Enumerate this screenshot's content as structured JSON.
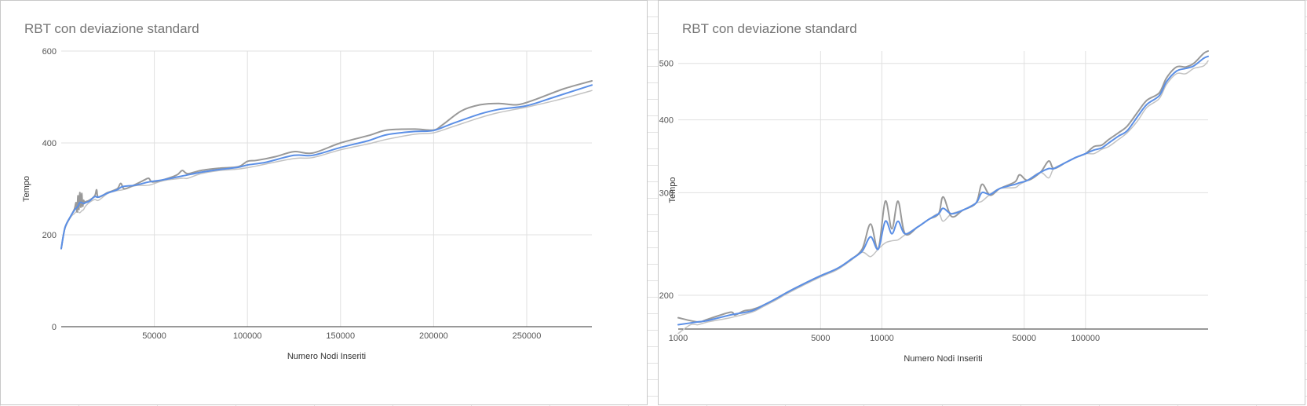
{
  "colors": {
    "mean": "#5b8fe6",
    "upper": "#999999",
    "lower": "#c2c2c2",
    "grid": "#e0e0e0",
    "axis": "#333333",
    "tick": "#555555",
    "title": "#757575"
  },
  "chart_data": [
    {
      "type": "line",
      "title": "RBT con deviazione standard",
      "xlabel": "Numero Nodi Inseriti",
      "ylabel": "Tempo",
      "xscale": "linear",
      "yscale": "linear",
      "xlim": [
        0,
        285000
      ],
      "ylim": [
        0,
        600
      ],
      "xticks": [
        50000,
        100000,
        150000,
        200000,
        250000
      ],
      "xtick_labels": [
        "50000",
        "100000",
        "150000",
        "200000",
        "250000"
      ],
      "yticks": [
        0,
        200,
        400,
        600
      ],
      "ytick_labels": [
        "0",
        "200",
        "400",
        "600"
      ],
      "grid": true,
      "legend": "none",
      "series": [
        {
          "role": "upper",
          "x": [
            0,
            2000,
            5000,
            7000,
            8000,
            8500,
            9000,
            9500,
            10000,
            10500,
            11000,
            11500,
            12000,
            12500,
            13000,
            15000,
            18000,
            19000,
            20000,
            25000,
            30000,
            32000,
            34000,
            40000,
            45000,
            47000,
            49000,
            55000,
            62000,
            65000,
            68000,
            75000,
            85000,
            95000,
            100000,
            105000,
            115000,
            125000,
            135000,
            150000,
            165000,
            175000,
            190000,
            200000,
            205000,
            215000,
            225000,
            235000,
            245000,
            255000,
            270000,
            285000
          ],
          "y": [
            170,
            215,
            240,
            255,
            270,
            250,
            285,
            255,
            292,
            260,
            290,
            262,
            275,
            268,
            272,
            275,
            285,
            298,
            282,
            292,
            300,
            312,
            300,
            310,
            320,
            323,
            315,
            320,
            330,
            340,
            333,
            340,
            345,
            348,
            360,
            362,
            370,
            381,
            378,
            400,
            416,
            428,
            430,
            428,
            440,
            470,
            483,
            486,
            483,
            495,
            518,
            535
          ]
        },
        {
          "role": "mean",
          "x": [
            0,
            2000,
            5000,
            7000,
            8000,
            9000,
            10000,
            11000,
            12000,
            13000,
            15000,
            18000,
            20000,
            25000,
            30000,
            33000,
            40000,
            47000,
            55000,
            65000,
            75000,
            85000,
            95000,
            100000,
            110000,
            125000,
            135000,
            150000,
            165000,
            175000,
            190000,
            200000,
            210000,
            225000,
            235000,
            250000,
            265000,
            285000
          ],
          "y": [
            170,
            215,
            240,
            253,
            258,
            262,
            270,
            270,
            268,
            270,
            273,
            283,
            282,
            291,
            298,
            305,
            308,
            315,
            320,
            328,
            336,
            342,
            347,
            352,
            358,
            373,
            373,
            390,
            405,
            418,
            425,
            427,
            442,
            463,
            473,
            481,
            500,
            526
          ]
        },
        {
          "role": "lower",
          "x": [
            0,
            2000,
            5000,
            7000,
            8000,
            9000,
            10000,
            11000,
            12000,
            13000,
            15000,
            18000,
            20000,
            25000,
            30000,
            33000,
            40000,
            47000,
            55000,
            65000,
            68000,
            75000,
            85000,
            95000,
            105000,
            125000,
            135000,
            150000,
            165000,
            175000,
            190000,
            200000,
            210000,
            225000,
            235000,
            250000,
            265000,
            285000
          ],
          "y": [
            170,
            213,
            238,
            246,
            250,
            250,
            248,
            252,
            255,
            262,
            270,
            277,
            275,
            290,
            296,
            298,
            307,
            308,
            318,
            323,
            323,
            333,
            340,
            343,
            350,
            366,
            368,
            385,
            398,
            408,
            419,
            422,
            435,
            455,
            466,
            478,
            492,
            514
          ]
        }
      ]
    },
    {
      "type": "line",
      "title": "RBT con deviazione standard",
      "xlabel": "Numero Nodi Inseriti",
      "ylabel": "Tempo",
      "xscale": "log",
      "yscale": "log",
      "xlim": [
        1000,
        400000
      ],
      "ylim": [
        175,
        525
      ],
      "xticks": [
        1000,
        5000,
        10000,
        50000,
        100000
      ],
      "xtick_labels": [
        "1000",
        "5000",
        "10000",
        "50000",
        "100000"
      ],
      "yticks": [
        200,
        300,
        400,
        500
      ],
      "ytick_labels": [
        "200",
        "300",
        "400",
        "500"
      ],
      "grid": true,
      "legend": "none",
      "series": [
        {
          "role": "upper",
          "x": [
            1000,
            1250,
            1400,
            1800,
            1900,
            2100,
            2300,
            2600,
            3000,
            3400,
            4000,
            5000,
            6000,
            7000,
            8000,
            8800,
            9600,
            10400,
            11200,
            12000,
            13000,
            15000,
            17000,
            19000,
            20000,
            22000,
            25000,
            29000,
            31000,
            34000,
            38000,
            45000,
            47500,
            52000,
            60000,
            66000,
            70000,
            80000,
            90000,
            100000,
            110000,
            120000,
            130000,
            145000,
            160000,
            180000,
            200000,
            230000,
            250000,
            280000,
            310000,
            340000,
            380000,
            400000
          ],
          "y": [
            183,
            180,
            182,
            187,
            185,
            188,
            189,
            192,
            197,
            202,
            208,
            216,
            222,
            230,
            240,
            265,
            240,
            290,
            260,
            290,
            255,
            262,
            270,
            276,
            295,
            273,
            280,
            288,
            310,
            297,
            305,
            313,
            322,
            315,
            325,
            340,
            330,
            338,
            345,
            350,
            360,
            362,
            370,
            380,
            390,
            412,
            432,
            445,
            472,
            493,
            493,
            500,
            520,
            525
          ]
        },
        {
          "role": "mean",
          "x": [
            1000,
            1250,
            1400,
            1800,
            2300,
            2600,
            3000,
            3400,
            4000,
            5000,
            6000,
            7000,
            8000,
            8800,
            9600,
            10400,
            11200,
            12000,
            13000,
            15000,
            17000,
            19000,
            20000,
            22000,
            25000,
            29000,
            31000,
            34000,
            38000,
            45000,
            47500,
            52000,
            60000,
            66000,
            70000,
            80000,
            90000,
            100000,
            110000,
            120000,
            130000,
            145000,
            160000,
            180000,
            200000,
            230000,
            250000,
            280000,
            310000,
            340000,
            380000,
            400000
          ],
          "y": [
            178,
            180,
            181,
            185,
            188,
            192,
            197,
            202,
            208,
            216,
            222,
            230,
            238,
            252,
            240,
            268,
            255,
            268,
            255,
            262,
            270,
            276,
            282,
            276,
            280,
            288,
            300,
            298,
            305,
            310,
            312,
            315,
            325,
            330,
            330,
            338,
            345,
            350,
            355,
            358,
            365,
            375,
            383,
            405,
            425,
            440,
            465,
            485,
            490,
            495,
            510,
            514
          ]
        },
        {
          "role": "lower",
          "x": [
            1000,
            1150,
            1250,
            1400,
            1800,
            2300,
            2600,
            3000,
            3400,
            4000,
            5000,
            6000,
            7000,
            8000,
            8800,
            9600,
            10400,
            11200,
            12000,
            13000,
            15000,
            17000,
            19000,
            20000,
            22000,
            25000,
            29000,
            31000,
            34000,
            38000,
            45000,
            47500,
            52000,
            60000,
            66000,
            70000,
            80000,
            90000,
            100000,
            110000,
            120000,
            130000,
            145000,
            160000,
            180000,
            200000,
            230000,
            250000,
            280000,
            310000,
            340000,
            380000,
            400000
          ],
          "y": [
            172,
            178,
            178,
            180,
            183,
            187,
            191,
            196,
            201,
            207,
            215,
            221,
            229,
            237,
            233,
            240,
            246,
            248,
            249,
            254,
            262,
            270,
            276,
            268,
            276,
            280,
            288,
            290,
            298,
            305,
            306,
            310,
            315,
            325,
            318,
            330,
            338,
            345,
            350,
            350,
            356,
            360,
            370,
            380,
            398,
            420,
            435,
            460,
            480,
            480,
            490,
            495,
            505
          ]
        }
      ]
    }
  ]
}
